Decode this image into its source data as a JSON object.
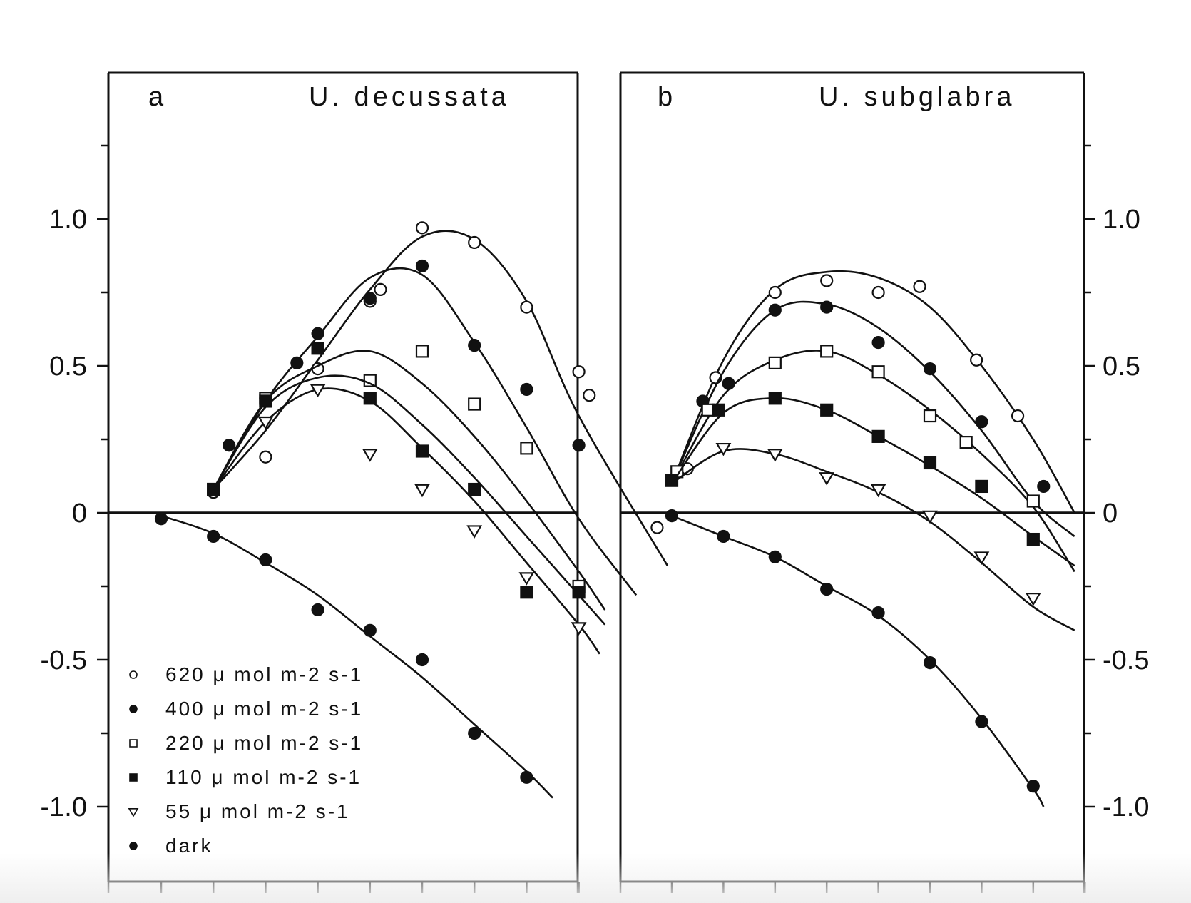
{
  "chart_data": [
    {
      "type": "scatter",
      "panel_letter": "a",
      "title": "U. decussata",
      "xlabel": "",
      "ylabel": "",
      "ylim": [
        -1.25,
        1.5
      ],
      "y_ticks": [
        -1.0,
        -0.5,
        0,
        0.5,
        1.0
      ],
      "y_tick_labels": [
        "-1.0",
        "-0.5",
        "0",
        "0.5",
        "1.0"
      ],
      "x_tick_count": 9,
      "y_axis_side": "left",
      "legend_position": "bottom-left",
      "series": [
        {
          "name": "620 μ mol m-2 s-1",
          "marker": "circle-open",
          "x": [
            1,
            2,
            3,
            4,
            4.2,
            5,
            6,
            7,
            8,
            8.2,
            9.5
          ],
          "y": [
            0.07,
            0.19,
            0.49,
            0.72,
            0.76,
            0.97,
            0.92,
            0.7,
            0.48,
            0.4,
            -0.05
          ],
          "curve_x": [
            1,
            2,
            3,
            4,
            5,
            6,
            7,
            8,
            9.7
          ],
          "curve_y": [
            0.08,
            0.28,
            0.52,
            0.76,
            0.94,
            0.93,
            0.72,
            0.33,
            -0.18
          ]
        },
        {
          "name": "400 μ mol m-2 s-1",
          "marker": "circle-filled",
          "x": [
            1,
            1.3,
            2,
            2.6,
            3,
            4,
            5,
            6,
            7,
            8
          ],
          "y": [
            0.08,
            0.23,
            0.39,
            0.51,
            0.61,
            0.73,
            0.84,
            0.57,
            0.42,
            0.23
          ],
          "curve_x": [
            1,
            2,
            3,
            4,
            5,
            6,
            7,
            8,
            9.1
          ],
          "curve_y": [
            0.08,
            0.38,
            0.6,
            0.8,
            0.81,
            0.58,
            0.29,
            -0.02,
            -0.28
          ]
        },
        {
          "name": "220 μ mol m-2 s-1",
          "marker": "square-open",
          "x": [
            1,
            2,
            4,
            5,
            6,
            7,
            8
          ],
          "y": [
            0.08,
            0.39,
            0.45,
            0.55,
            0.37,
            0.22,
            -0.25
          ],
          "curve_x": [
            1,
            2,
            3,
            4,
            5,
            6,
            7,
            8,
            8.5
          ],
          "curve_y": [
            0.08,
            0.38,
            0.5,
            0.55,
            0.44,
            0.26,
            0.04,
            -0.2,
            -0.33
          ]
        },
        {
          "name": "110 μ mol m-2 s-1",
          "marker": "square-filled",
          "x": [
            1,
            2,
            3,
            4,
            5,
            6,
            7,
            8
          ],
          "y": [
            0.08,
            0.38,
            0.56,
            0.39,
            0.21,
            0.08,
            -0.27,
            -0.27
          ],
          "curve_x": [
            1,
            2,
            3,
            4,
            5,
            6,
            7,
            8,
            8.5
          ],
          "curve_y": [
            0.08,
            0.36,
            0.46,
            0.44,
            0.3,
            0.12,
            -0.08,
            -0.28,
            -0.38
          ]
        },
        {
          "name": "55 μ mol m-2 s-1",
          "marker": "triangle-open",
          "x": [
            2,
            3,
            4,
            5,
            6,
            7,
            8
          ],
          "y": [
            0.31,
            0.42,
            0.2,
            0.08,
            -0.06,
            -0.22,
            -0.39
          ],
          "curve_x": [
            1,
            2,
            3,
            4,
            5,
            6,
            7,
            8,
            8.4
          ],
          "curve_y": [
            0.08,
            0.31,
            0.42,
            0.38,
            0.22,
            0.04,
            -0.17,
            -0.38,
            -0.48
          ]
        },
        {
          "name": "dark",
          "marker": "circle-filled",
          "x": [
            0,
            1,
            2,
            3,
            4,
            5,
            6,
            7
          ],
          "y": [
            -0.02,
            -0.08,
            -0.16,
            -0.33,
            -0.4,
            -0.5,
            -0.75,
            -0.9
          ],
          "curve_x": [
            0,
            1,
            2,
            3,
            4,
            5,
            6,
            7,
            7.5
          ],
          "curve_y": [
            -0.01,
            -0.07,
            -0.17,
            -0.28,
            -0.42,
            -0.56,
            -0.72,
            -0.88,
            -0.97
          ]
        }
      ]
    },
    {
      "type": "scatter",
      "panel_letter": "b",
      "title": "U. subglabra",
      "xlabel": "",
      "ylabel": "",
      "ylim": [
        -1.25,
        1.5
      ],
      "y_ticks": [
        -1.0,
        -0.5,
        0,
        0.5,
        1.0
      ],
      "y_tick_labels": [
        "-1.0",
        "-0.5",
        "0",
        "0.5",
        "1.0"
      ],
      "x_tick_count": 9,
      "y_axis_side": "right",
      "series": [
        {
          "name": "620 μ mol m-2 s-1",
          "marker": "circle-open",
          "x": [
            0.3,
            0.85,
            2,
            3,
            4,
            4.8,
            5.9,
            6.7
          ],
          "y": [
            0.15,
            0.46,
            0.75,
            0.79,
            0.75,
            0.77,
            0.52,
            0.33
          ],
          "curve_x": [
            0,
            1,
            2,
            3,
            4,
            5,
            6,
            7,
            7.8
          ],
          "curve_y": [
            0.1,
            0.52,
            0.76,
            0.82,
            0.8,
            0.7,
            0.5,
            0.25,
            0
          ]
        },
        {
          "name": "400 μ mol m-2 s-1",
          "marker": "circle-filled",
          "x": [
            0.6,
            1.1,
            2,
            3,
            4,
            5,
            6,
            7.2
          ],
          "y": [
            0.38,
            0.44,
            0.69,
            0.7,
            0.58,
            0.49,
            0.31,
            0.09
          ],
          "curve_x": [
            0,
            1,
            2,
            3,
            4,
            5,
            6,
            7,
            7.8
          ],
          "curve_y": [
            0.1,
            0.48,
            0.69,
            0.71,
            0.63,
            0.48,
            0.28,
            0.04,
            -0.08
          ]
        },
        {
          "name": "220 μ mol m-2 s-1",
          "marker": "square-open",
          "x": [
            0.1,
            0.7,
            2,
            3,
            4,
            5,
            5.7,
            7
          ],
          "y": [
            0.14,
            0.35,
            0.51,
            0.55,
            0.48,
            0.33,
            0.24,
            0.04
          ],
          "curve_x": [
            0,
            1,
            2,
            3,
            4,
            5,
            6,
            7,
            7.8
          ],
          "curve_y": [
            0.1,
            0.4,
            0.52,
            0.55,
            0.47,
            0.35,
            0.2,
            0.02,
            -0.2
          ]
        },
        {
          "name": "110 μ mol m-2 s-1",
          "marker": "square-filled",
          "x": [
            0,
            0.9,
            2,
            3,
            4,
            5,
            6,
            7
          ],
          "y": [
            0.11,
            0.35,
            0.39,
            0.35,
            0.26,
            0.17,
            0.09,
            -0.09
          ],
          "curve_x": [
            0,
            1,
            2,
            3,
            4,
            5,
            6,
            7,
            7.8
          ],
          "curve_y": [
            0.1,
            0.34,
            0.39,
            0.35,
            0.26,
            0.16,
            0.05,
            -0.08,
            -0.18
          ]
        },
        {
          "name": "55 μ mol m-2 s-1",
          "marker": "triangle-open",
          "x": [
            1,
            2,
            3,
            4,
            5,
            6,
            7
          ],
          "y": [
            0.22,
            0.2,
            0.12,
            0.08,
            -0.01,
            -0.15,
            -0.29
          ],
          "curve_x": [
            0,
            1,
            2,
            3,
            4,
            5,
            6,
            7,
            7.8
          ],
          "curve_y": [
            0.1,
            0.21,
            0.2,
            0.14,
            0.07,
            -0.03,
            -0.17,
            -0.32,
            -0.4
          ]
        },
        {
          "name": "dark",
          "marker": "circle-filled",
          "x": [
            0,
            1,
            2,
            3,
            4,
            5,
            6,
            7
          ],
          "y": [
            -0.01,
            -0.08,
            -0.15,
            -0.26,
            -0.34,
            -0.51,
            -0.71,
            -0.93
          ],
          "curve_x": [
            0,
            1,
            2,
            3,
            4,
            5,
            6,
            7,
            7.2
          ],
          "curve_y": [
            -0.01,
            -0.08,
            -0.15,
            -0.25,
            -0.35,
            -0.5,
            -0.7,
            -0.94,
            -1.0
          ]
        }
      ]
    }
  ]
}
